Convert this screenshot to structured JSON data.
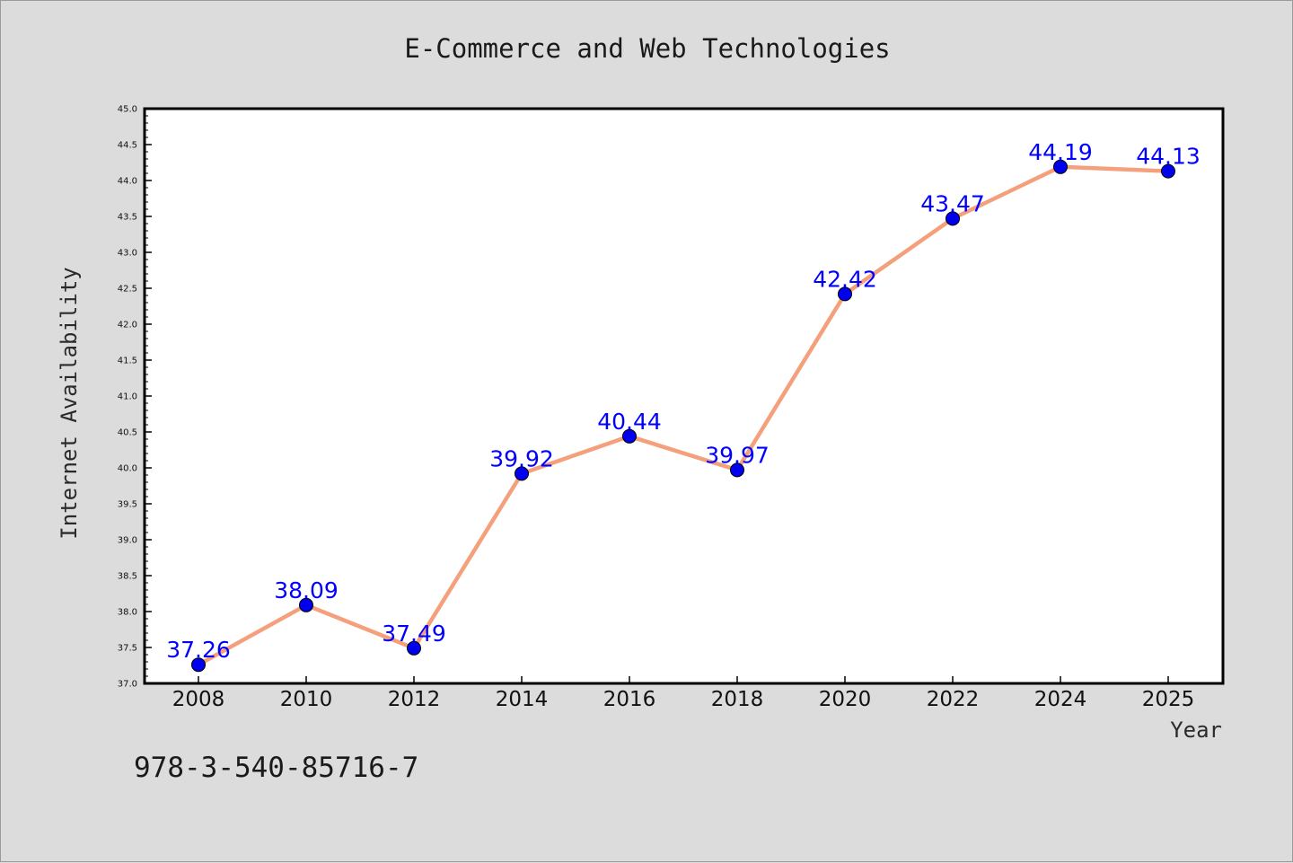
{
  "chart_data": {
    "type": "line",
    "title": "E-Commerce and Web Technologies",
    "xlabel": "Year",
    "ylabel": "Internet Availability",
    "categories": [
      "2008",
      "2010",
      "2012",
      "2014",
      "2016",
      "2018",
      "2020",
      "2022",
      "2024",
      "2025"
    ],
    "series": [
      {
        "values": [
          37.26,
          38.09,
          37.49,
          39.92,
          40.44,
          39.97,
          42.42,
          43.47,
          44.19,
          44.13
        ],
        "labels": [
          "37.26",
          "38.09",
          "37.49",
          "39.92",
          "40.44",
          "39.97",
          "42.42",
          "43.47",
          "44.19",
          "44.13"
        ],
        "line_color": "#f4a07c",
        "marker_color": "#0000ee"
      }
    ],
    "ylim": [
      37.0,
      45.0
    ],
    "yticks": [
      "37.0",
      "37.5",
      "38.0",
      "38.5",
      "39.0",
      "39.5",
      "40.0",
      "40.5",
      "41.0",
      "41.5",
      "42.0",
      "42.5",
      "43.0",
      "43.5",
      "44.0",
      "44.5",
      "45.0"
    ],
    "grid": false,
    "legend": "none"
  },
  "annotation": {
    "isbn": "978-3-540-85716-7"
  }
}
